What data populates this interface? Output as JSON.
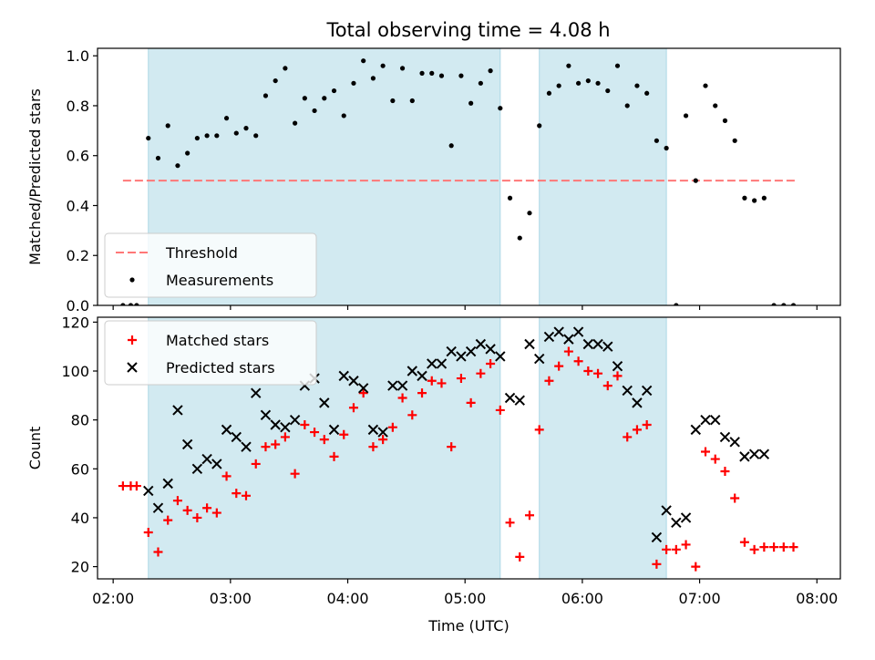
{
  "title": "Total observing time = 4.08 h",
  "chart_data": [
    {
      "type": "scatter",
      "ylabel": "Matched/Predicted stars",
      "xlabel": "",
      "xlim": [
        "01:52",
        "08:12"
      ],
      "ylim": [
        0,
        1.03
      ],
      "yticks": [
        0.0,
        0.2,
        0.4,
        0.6,
        0.8,
        1.0
      ],
      "ytick_labels": [
        "0.0",
        "0.2",
        "0.4",
        "0.6",
        "0.8",
        "1.0"
      ],
      "threshold": {
        "name": "Threshold",
        "value": 0.5,
        "from": "02:05",
        "to": "07:50",
        "color": "#ff7777"
      },
      "shaded_intervals": [
        [
          "02:18",
          "05:18"
        ],
        [
          "05:38",
          "06:43"
        ]
      ],
      "shade_color": "#add8e6",
      "legend": {
        "position": "lower-left",
        "entries": [
          "Threshold",
          "Measurements"
        ]
      },
      "series": [
        {
          "name": "Measurements",
          "marker": "dot",
          "color": "#000000",
          "x": [
            "02:05",
            "02:09",
            "02:12",
            "02:18",
            "02:23",
            "02:28",
            "02:33",
            "02:38",
            "02:43",
            "02:48",
            "02:53",
            "02:58",
            "03:03",
            "03:08",
            "03:13",
            "03:18",
            "03:23",
            "03:28",
            "03:33",
            "03:38",
            "03:43",
            "03:48",
            "03:53",
            "03:58",
            "04:03",
            "04:08",
            "04:13",
            "04:18",
            "04:23",
            "04:28",
            "04:33",
            "04:38",
            "04:43",
            "04:48",
            "04:53",
            "04:58",
            "05:03",
            "05:08",
            "05:13",
            "05:18",
            "05:23",
            "05:28",
            "05:33",
            "05:38",
            "05:43",
            "05:48",
            "05:53",
            "05:58",
            "06:03",
            "06:08",
            "06:13",
            "06:18",
            "06:23",
            "06:28",
            "06:33",
            "06:38",
            "06:43",
            "06:48",
            "06:53",
            "06:58",
            "07:03",
            "07:08",
            "07:13",
            "07:18",
            "07:23",
            "07:28",
            "07:33",
            "07:38",
            "07:43",
            "07:48"
          ],
          "y": [
            0.0,
            0.0,
            0.0,
            0.67,
            0.59,
            0.72,
            0.56,
            0.61,
            0.67,
            0.68,
            0.68,
            0.75,
            0.69,
            0.71,
            0.68,
            0.84,
            0.9,
            0.95,
            0.73,
            0.83,
            0.78,
            0.83,
            0.86,
            0.76,
            0.89,
            0.98,
            0.91,
            0.96,
            0.82,
            0.95,
            0.82,
            0.93,
            0.93,
            0.92,
            0.64,
            0.92,
            0.81,
            0.89,
            0.94,
            0.79,
            0.43,
            0.27,
            0.37,
            0.72,
            0.85,
            0.88,
            0.96,
            0.89,
            0.9,
            0.89,
            0.86,
            0.96,
            0.8,
            0.88,
            0.85,
            0.66,
            0.63,
            0.0,
            0.76,
            0.5,
            0.88,
            0.8,
            0.74,
            0.66,
            0.43,
            0.42,
            0.43,
            0.0,
            0.0,
            0.0
          ]
        }
      ]
    },
    {
      "type": "scatter",
      "ylabel": "Count",
      "xlabel": "Time (UTC)",
      "xlim": [
        "01:52",
        "08:12"
      ],
      "xticks": [
        "02:00",
        "03:00",
        "04:00",
        "05:00",
        "06:00",
        "07:00",
        "08:00"
      ],
      "ylim": [
        15,
        122
      ],
      "yticks": [
        20,
        40,
        60,
        80,
        100,
        120
      ],
      "shaded_intervals": [
        [
          "02:18",
          "05:18"
        ],
        [
          "05:38",
          "06:43"
        ]
      ],
      "shade_color": "#add8e6",
      "legend": {
        "position": "upper-left",
        "entries": [
          "Matched stars",
          "Predicted stars"
        ]
      },
      "series": [
        {
          "name": "Matched stars",
          "marker": "plus",
          "color": "#ff0000",
          "x": [
            "02:05",
            "02:09",
            "02:12",
            "02:18",
            "02:23",
            "02:28",
            "02:33",
            "02:38",
            "02:43",
            "02:48",
            "02:53",
            "02:58",
            "03:03",
            "03:08",
            "03:13",
            "03:18",
            "03:23",
            "03:28",
            "03:33",
            "03:38",
            "03:43",
            "03:48",
            "03:53",
            "03:58",
            "04:03",
            "04:08",
            "04:13",
            "04:18",
            "04:23",
            "04:28",
            "04:33",
            "04:38",
            "04:43",
            "04:48",
            "04:53",
            "04:58",
            "05:03",
            "05:08",
            "05:13",
            "05:18",
            "05:23",
            "05:28",
            "05:33",
            "05:38",
            "05:43",
            "05:48",
            "05:53",
            "05:58",
            "06:03",
            "06:08",
            "06:13",
            "06:18",
            "06:23",
            "06:28",
            "06:33",
            "06:38",
            "06:43",
            "06:48",
            "06:53",
            "06:58",
            "07:03",
            "07:08",
            "07:13",
            "07:18",
            "07:23",
            "07:28",
            "07:33",
            "07:38",
            "07:43",
            "07:48"
          ],
          "y": [
            53,
            53,
            53,
            34,
            26,
            39,
            47,
            43,
            40,
            44,
            42,
            57,
            50,
            49,
            62,
            69,
            70,
            73,
            58,
            78,
            75,
            72,
            65,
            74,
            85,
            91,
            69,
            72,
            77,
            89,
            82,
            91,
            96,
            95,
            69,
            97,
            87,
            99,
            103,
            84,
            38,
            24,
            41,
            76,
            96,
            102,
            108,
            104,
            100,
            99,
            94,
            98,
            73,
            76,
            78,
            21,
            27,
            27,
            29,
            20,
            67,
            64,
            59,
            48,
            30,
            27,
            28,
            28,
            28,
            28
          ]
        },
        {
          "name": "Predicted stars",
          "marker": "x",
          "color": "#000000",
          "x": [
            "02:18",
            "02:23",
            "02:28",
            "02:33",
            "02:38",
            "02:43",
            "02:48",
            "02:53",
            "02:58",
            "03:03",
            "03:08",
            "03:13",
            "03:18",
            "03:23",
            "03:28",
            "03:33",
            "03:38",
            "03:43",
            "03:48",
            "03:53",
            "03:58",
            "04:03",
            "04:08",
            "04:13",
            "04:18",
            "04:23",
            "04:28",
            "04:33",
            "04:38",
            "04:43",
            "04:48",
            "04:53",
            "04:58",
            "05:03",
            "05:08",
            "05:13",
            "05:18",
            "05:23",
            "05:28",
            "05:33",
            "05:38",
            "05:43",
            "05:48",
            "05:53",
            "05:58",
            "06:03",
            "06:08",
            "06:13",
            "06:18",
            "06:23",
            "06:28",
            "06:33",
            "06:38",
            "06:43",
            "06:48",
            "06:53",
            "06:58",
            "07:03",
            "07:08",
            "07:13",
            "07:18",
            "07:23",
            "07:28",
            "07:33"
          ],
          "y": [
            51,
            44,
            54,
            84,
            70,
            60,
            64,
            62,
            76,
            73,
            69,
            91,
            82,
            78,
            77,
            80,
            94,
            97,
            87,
            76,
            98,
            96,
            93,
            76,
            75,
            94,
            94,
            100,
            98,
            103,
            103,
            108,
            106,
            108,
            111,
            109,
            106,
            89,
            88,
            111,
            105,
            114,
            116,
            113,
            116,
            111,
            111,
            110,
            102,
            92,
            87,
            92,
            32,
            43,
            38,
            40,
            76,
            80,
            80,
            73,
            71,
            65,
            66,
            66
          ]
        }
      ]
    }
  ]
}
